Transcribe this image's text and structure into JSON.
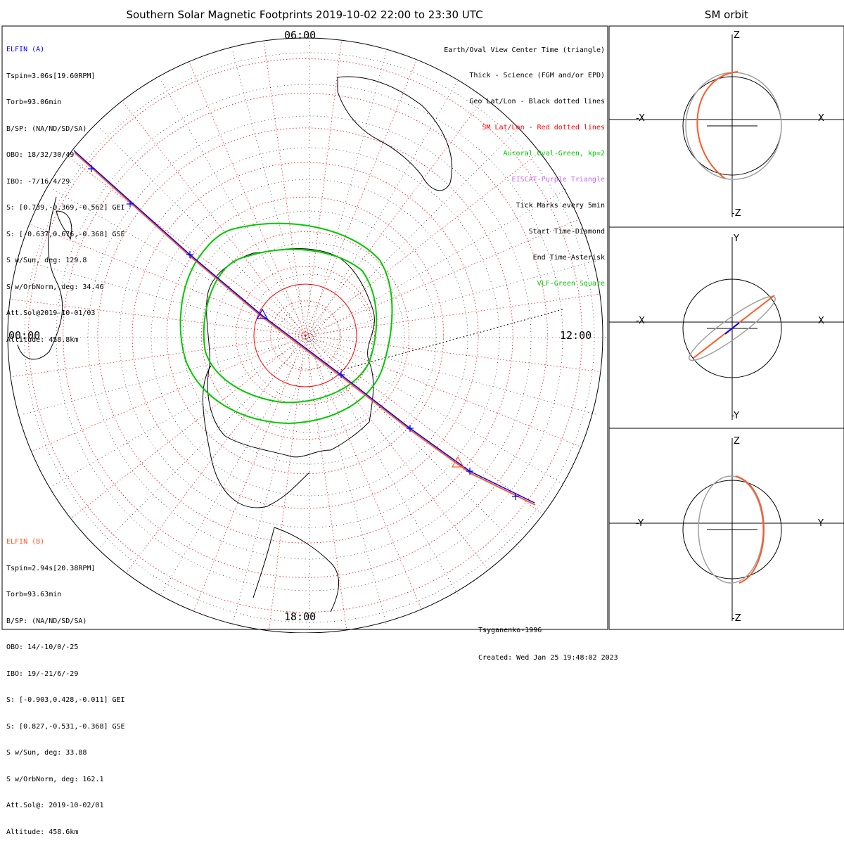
{
  "title": "Southern Solar Magnetic Footprints 2019-10-02 22:00 to 23:30 UTC",
  "orbit_title": "SM orbit",
  "sat_a": {
    "name": "ELFIN (A)",
    "color": "#0000ff",
    "lines": [
      "Tspin=3.06s[19.60RPM]",
      "Torb=93.06min",
      "B/SP: (NA/ND/SD/SA)",
      "OBO: 18/32/30/49",
      "IBO: -7/16/4/29",
      "S: [0.739,-0.369,-0.562] GEI",
      "S: [-0.637,0.676,-0.368] GSE",
      "S w/Sun, deg: 129.8",
      "S w/OrbNorm, deg: 34.46",
      "Att.Sol@2019-10-01/03",
      "Altitude: 458.8km"
    ]
  },
  "sat_b": {
    "name": "ELFIN (B)",
    "color": "#ff5a28",
    "lines": [
      "Tspin=2.94s[20.38RPM]",
      "Torb=93.63min",
      "B/SP: (NA/ND/SD/SA)",
      "OBO: 14/-10/0/-25",
      "IBO: 19/-21/6/-29",
      "S: [-0.903,0.428,-0.011] GEI",
      "S: [0.827,-0.531,-0.368] GSE",
      "S w/Sun, deg: 33.88",
      "S w/OrbNorm, deg: 162.1",
      "Att.Sol@: 2019-10-02/01",
      "Altitude: 458.6km"
    ]
  },
  "legend": [
    {
      "text": "Earth/Oval View Center Time (triangle)",
      "color": "#000000"
    },
    {
      "text": "Thick - Science (FGM and/or EPD)",
      "color": "#000000"
    },
    {
      "text": "Geo Lat/Lon - Black dotted lines",
      "color": "#000000"
    },
    {
      "text": "SM Lat/Lon - Red dotted lines",
      "color": "#ff0000"
    },
    {
      "text": "Auroral Oval-Green, kp=2",
      "color": "#00c800"
    },
    {
      "text": "EISCAT-Purple Triangle",
      "color": "#c864ff"
    },
    {
      "text": "Tick Marks every 5min",
      "color": "#000000"
    },
    {
      "text": "Start Time-Diamond",
      "color": "#000000"
    },
    {
      "text": "End Time-Asterisk",
      "color": "#000000"
    },
    {
      "text": "VLF-Green Square",
      "color": "#00c800"
    }
  ],
  "mlt_labels": {
    "left": "00:00",
    "right": "12:00",
    "bottom": "18:00",
    "top": "06:00"
  },
  "model": "Tsyganenko-1996",
  "created": "Created: Wed Jan 25 19:48:02 2023",
  "orbit_panels": [
    {
      "top": "Z",
      "bottom": "-Z",
      "left": "-X",
      "right": "X"
    },
    {
      "top": "Y",
      "bottom": "-Y",
      "left": "-X",
      "right": "X"
    },
    {
      "top": "Z",
      "bottom": "-Z",
      "left": "-Y",
      "right": "Y"
    }
  ],
  "colors": {
    "oval": "#00c800",
    "sm_grid": "#ff0000",
    "geo_grid": "#000000",
    "orbit_gray": "#a0a0a0"
  }
}
